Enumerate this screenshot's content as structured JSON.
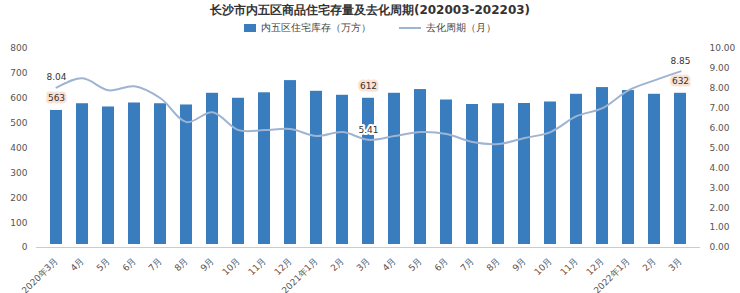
{
  "chart_data": {
    "type": "bar",
    "title": "长沙市内五区商品住宅存量及去化周期(202003-202203)",
    "categories": [
      "2020年3月",
      "4月",
      "5月",
      "6月",
      "7月",
      "8月",
      "9月",
      "10月",
      "11月",
      "12月",
      "2021年1月",
      "2月",
      "3月",
      "4月",
      "5月",
      "6月",
      "7月",
      "8月",
      "9月",
      "10月",
      "11月",
      "12月",
      "2022年1月",
      "2月",
      "3月"
    ],
    "series": [
      {
        "name": "内五区住宅库存（万方）",
        "type": "bar",
        "color": "#3a7dbf",
        "values": [
          563,
          590,
          577,
          593,
          590,
          585,
          632,
          612,
          634,
          683,
          640,
          624,
          612,
          632,
          647,
          605,
          587,
          590,
          591,
          597,
          628,
          655,
          643,
          628,
          632
        ],
        "value_labels": [
          "563",
          null,
          null,
          null,
          null,
          null,
          null,
          null,
          null,
          null,
          null,
          null,
          "612",
          null,
          null,
          null,
          null,
          null,
          null,
          null,
          null,
          null,
          null,
          null,
          "632"
        ]
      },
      {
        "name": "去化周期（月）",
        "type": "line",
        "axis": "y2",
        "color": "#9fb4d2",
        "values": [
          8.04,
          8.5,
          7.9,
          8.1,
          7.5,
          6.3,
          6.8,
          5.9,
          5.9,
          5.95,
          5.6,
          5.8,
          5.41,
          5.6,
          5.8,
          5.7,
          5.3,
          5.2,
          5.5,
          5.8,
          6.6,
          7.0,
          7.9,
          8.4,
          8.85
        ],
        "value_labels": [
          "8.04",
          null,
          null,
          null,
          null,
          null,
          null,
          null,
          null,
          null,
          null,
          null,
          "5.41",
          null,
          null,
          null,
          null,
          null,
          null,
          null,
          null,
          null,
          null,
          null,
          "8.85"
        ]
      }
    ],
    "ylim": [
      0,
      800
    ],
    "yticks": [
      0,
      100,
      200,
      300,
      400,
      500,
      600,
      700,
      800
    ],
    "y2lim": [
      0,
      10
    ],
    "y2ticks": [
      {
        "value": 0,
        "label": "0.00"
      },
      {
        "value": 1,
        "label": "1.00"
      },
      {
        "value": 2,
        "label": "2.00"
      },
      {
        "value": 3,
        "label": "3.00"
      },
      {
        "value": 4,
        "label": "4.00"
      },
      {
        "value": 5,
        "label": "5.00"
      },
      {
        "value": 6,
        "label": "6.00"
      },
      {
        "value": 7,
        "label": "7.00"
      },
      {
        "value": 8,
        "label": "8.00"
      },
      {
        "value": 9,
        "label": "9.00"
      },
      {
        "value": 10,
        "label": "10.00"
      }
    ],
    "grid": false,
    "legend": "top",
    "data_labels": true
  }
}
